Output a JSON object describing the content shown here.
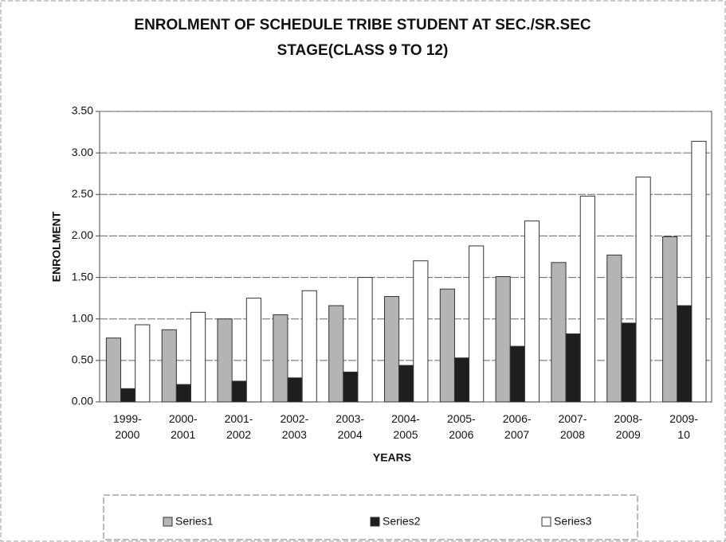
{
  "chart_data": {
    "type": "bar",
    "title": [
      "ENROLMENT OF SCHEDULE TRIBE STUDENT AT SEC./SR.SEC",
      "STAGE(CLASS 9 TO 12)"
    ],
    "x_label": "YEARS",
    "y_label": "ENROLMENT",
    "categories": [
      "1999-2000",
      "2000-2001",
      "2001-2002",
      "2002-2003",
      "2003-2004",
      "2004-2005",
      "2005-2006",
      "2006-2007",
      "2007-2008",
      "2008-2009",
      "2009-10"
    ],
    "series": [
      {
        "name": "Series1",
        "color": "#b4b4b4",
        "values": [
          0.77,
          0.87,
          1.0,
          1.05,
          1.16,
          1.27,
          1.36,
          1.51,
          1.68,
          1.77,
          1.99
        ]
      },
      {
        "name": "Series2",
        "color": "#1e1e1e",
        "values": [
          0.16,
          0.21,
          0.25,
          0.29,
          0.36,
          0.44,
          0.53,
          0.67,
          0.82,
          0.95,
          1.16
        ]
      },
      {
        "name": "Series3",
        "color": "#ffffff",
        "values": [
          0.93,
          1.08,
          1.25,
          1.34,
          1.5,
          1.7,
          1.88,
          2.18,
          2.48,
          2.71,
          3.14
        ]
      }
    ],
    "ylim": [
      0,
      3.5
    ],
    "yticks": [
      {
        "value": 0,
        "label": "0.00"
      },
      {
        "value": 0.5,
        "label": "0.50"
      },
      {
        "value": 1,
        "label": "1.00"
      },
      {
        "value": 1.5,
        "label": "1.50"
      },
      {
        "value": 2,
        "label": "2.00"
      },
      {
        "value": 2.5,
        "label": "2.50"
      },
      {
        "value": 3,
        "label": "3.00"
      },
      {
        "value": 3.5,
        "label": "3.50"
      }
    ],
    "grid": true,
    "legend": "bottom"
  }
}
